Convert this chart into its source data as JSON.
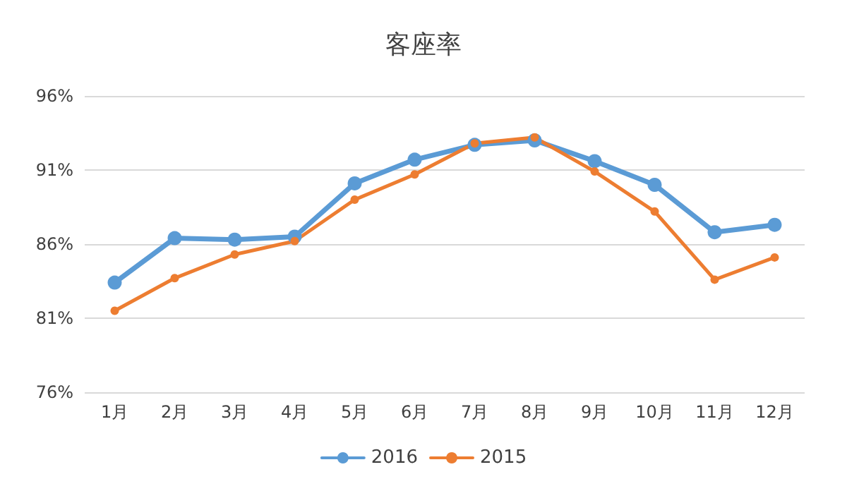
{
  "chart_data": {
    "type": "line",
    "title": "客座率",
    "categories": [
      "1月",
      "2月",
      "3月",
      "4月",
      "5月",
      "6月",
      "7月",
      "8月",
      "9月",
      "10月",
      "11月",
      "12月"
    ],
    "series": [
      {
        "name": "2016",
        "color": "#5b9bd5",
        "values": [
          83.4,
          86.4,
          86.3,
          86.5,
          90.1,
          91.7,
          92.7,
          93.0,
          91.6,
          90.0,
          86.8,
          87.3
        ]
      },
      {
        "name": "2015",
        "color": "#ed7d31",
        "values": [
          81.5,
          83.7,
          85.3,
          86.2,
          89.0,
          90.7,
          92.8,
          93.2,
          90.9,
          88.2,
          83.6,
          85.1
        ]
      }
    ],
    "ylim": [
      76,
      96
    ],
    "yticks": [
      {
        "value": 76,
        "label": "76%"
      },
      {
        "value": 81,
        "label": "81%"
      },
      {
        "value": 86,
        "label": "86%"
      },
      {
        "value": 91,
        "label": "91%"
      },
      {
        "value": 96,
        "label": "96%"
      }
    ],
    "grid": "y",
    "legend": "bottom",
    "marker": "circle",
    "line_style": "solid"
  }
}
